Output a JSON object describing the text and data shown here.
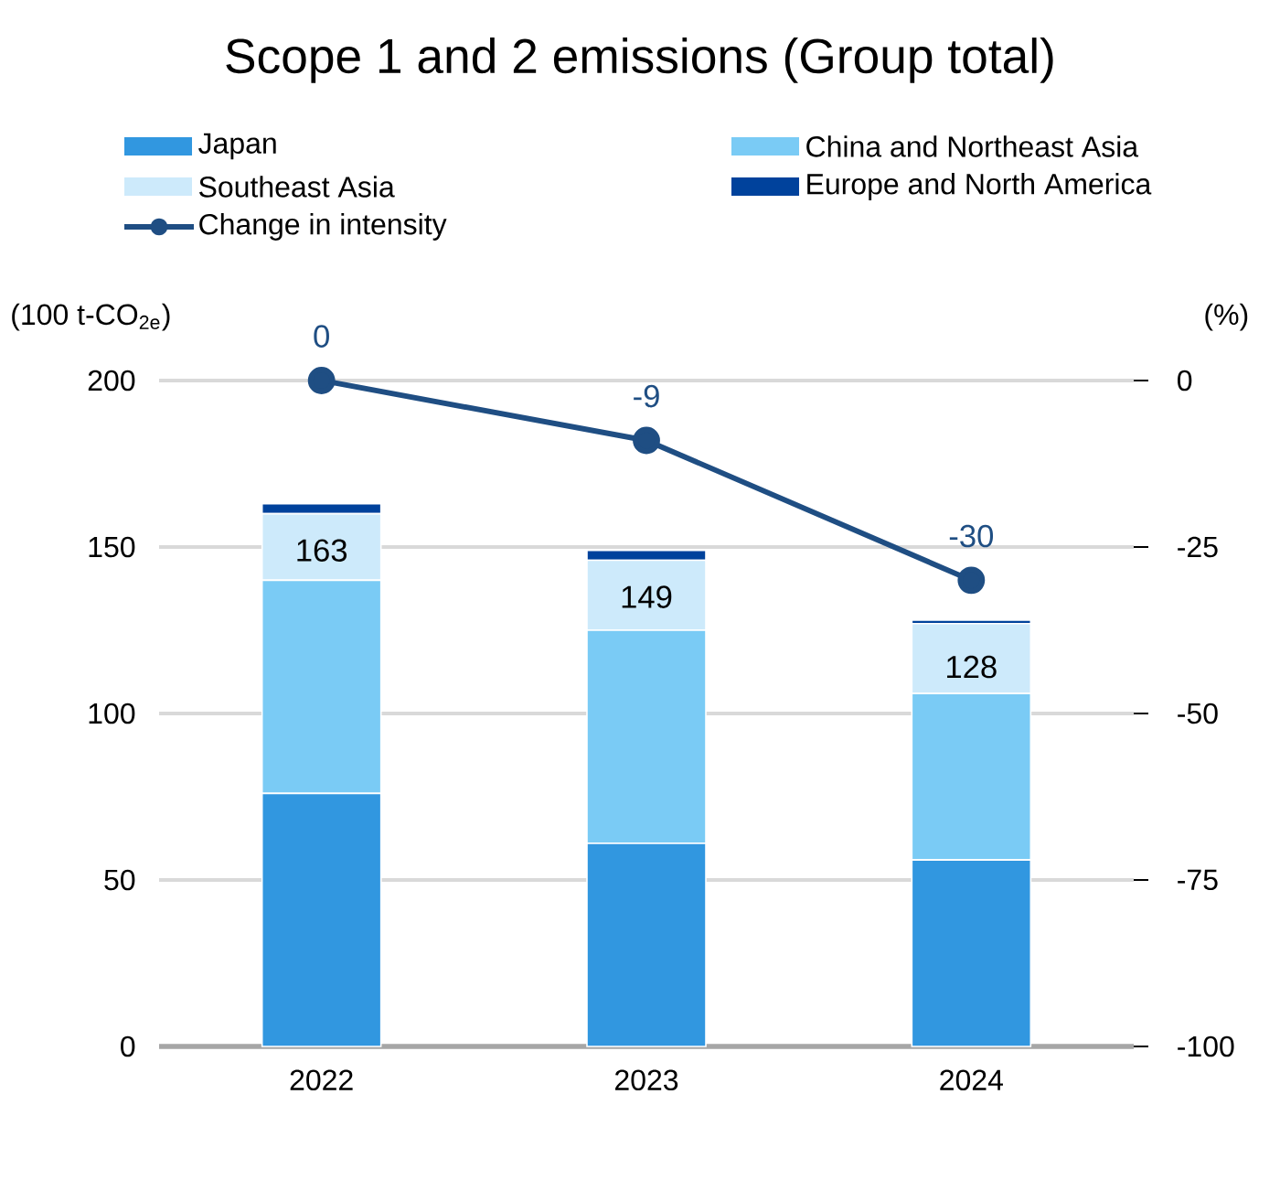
{
  "chart_data": {
    "type": "bar",
    "title": "Scope 1 and 2 emissions (Group total)",
    "ylabel": "(100 t-CO$_{2e}$)",
    "y2label": "(%)",
    "categories": [
      "2022",
      "2023",
      "2024"
    ],
    "stacked": true,
    "series": [
      {
        "name": "Japan",
        "color": "#3197e0",
        "values": [
          76,
          61,
          56
        ]
      },
      {
        "name": "China and Northeast Asia",
        "color": "#7acbf5",
        "values": [
          64,
          64,
          50
        ]
      },
      {
        "name": "Southeast Asia",
        "color": "#cdeafb",
        "values": [
          20,
          21,
          21
        ]
      },
      {
        "name": "Europe and North America",
        "color": "#00429c",
        "values": [
          3,
          3,
          1
        ]
      },
      {
        "name": "Change in intensity",
        "type": "line",
        "axis": "y2",
        "color": "#1f4e83",
        "values": [
          0,
          -9,
          -30
        ],
        "value_labels": [
          "0",
          "-9",
          "-30"
        ],
        "marker": "circle",
        "line_style": "solid"
      }
    ],
    "totals": [
      "163",
      "149",
      "128"
    ],
    "ylim": [
      0,
      200
    ],
    "yticks": [
      0,
      50,
      100,
      150,
      200
    ],
    "y2lim": [
      -100,
      0
    ],
    "y2ticks": [
      -100,
      -75,
      -50,
      -25,
      0
    ],
    "grid": "y",
    "legend": "top"
  }
}
